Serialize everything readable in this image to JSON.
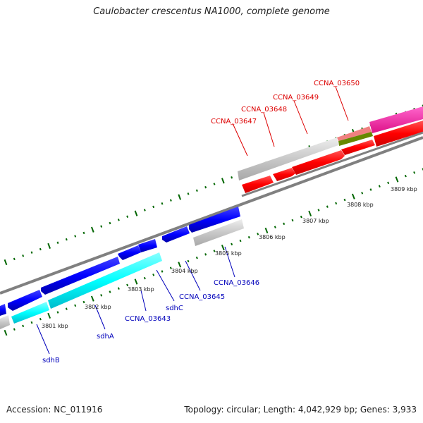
{
  "title": "Caulobacter crescentus NA1000, complete genome",
  "footer": {
    "accession": "Accession: NC_011916",
    "stats": "Topology: circular; Length: 4,042,929 bp; Genes: 3,933"
  },
  "scale": {
    "ticks": [
      "3801 kbp",
      "3802 kbp",
      "3803 kbp",
      "3804 kbp",
      "3805 kbp",
      "3806 kbp",
      "3807 kbp",
      "3808 kbp",
      "3809 kbp"
    ]
  },
  "genes": {
    "forward": [
      {
        "label": "CCNA_03647",
        "color": "#dd0000"
      },
      {
        "label": "CCNA_03648",
        "color": "#dd0000"
      },
      {
        "label": "CCNA_03649",
        "color": "#dd0000"
      },
      {
        "label": "CCNA_03650",
        "color": "#dd0000"
      }
    ],
    "reverse": [
      {
        "label": "sdhB",
        "color": "#0000bb"
      },
      {
        "label": "sdhA",
        "color": "#0000bb"
      },
      {
        "label": "CCNA_03643",
        "color": "#0000bb"
      },
      {
        "label": "sdhC",
        "color": "#0000bb"
      },
      {
        "label": "CCNA_03645",
        "color": "#0000bb"
      },
      {
        "label": "CCNA_03646",
        "color": "#0000bb"
      }
    ]
  },
  "colors": {
    "forward_cds": "#ff0000",
    "reverse_cds": "#0000ff",
    "rna": "#00ffff",
    "gene": "#c0c0c0",
    "backbone": "#808080",
    "tick": "#006600",
    "hotpink": "#ee2299",
    "olive": "#668800",
    "salmon": "#f08080"
  }
}
